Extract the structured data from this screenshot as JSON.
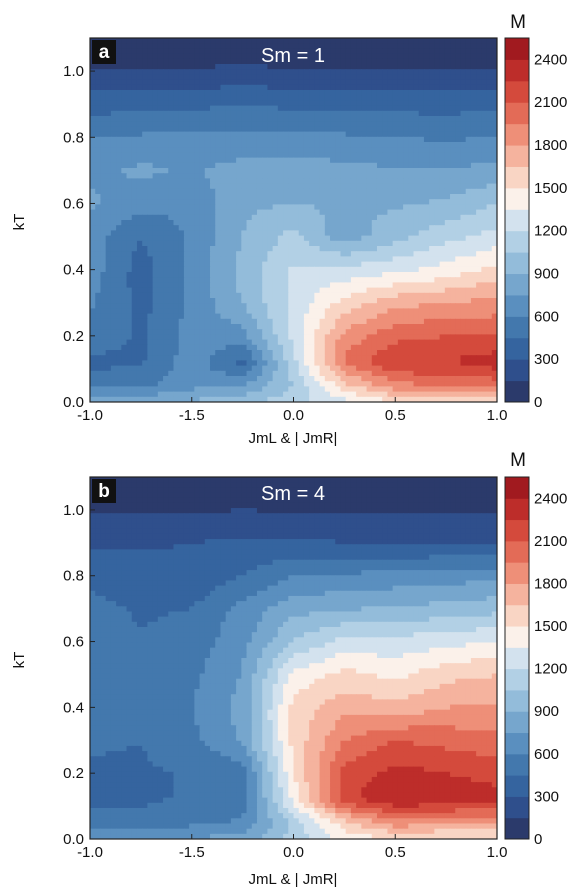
{
  "chart_data": [
    {
      "type": "heatmap",
      "panel_tag": "a",
      "title": "Sm = 1",
      "xlabel": "JmL & | JmR|",
      "ylabel": "kT",
      "xticks": [
        "-1.0",
        "-1.5",
        "0.0",
        "0.5",
        "1.0"
      ],
      "yticks": [
        "0.0",
        "0.2",
        "0.4",
        "0.6",
        "0.8",
        "1.0"
      ],
      "ylim": [
        0,
        1.1
      ],
      "colorbar": {
        "title": "M",
        "ticks": [
          "0",
          "300",
          "600",
          "900",
          "1200",
          "1500",
          "1800",
          "2100",
          "2400"
        ],
        "range": [
          0,
          2550
        ]
      },
      "legend": "right",
      "grid": false,
      "rows": [
        {
          "kT": 1.1,
          "values": [
            0,
            0,
            0,
            0,
            0,
            0,
            0,
            0,
            0
          ]
        },
        {
          "kT": 1.0,
          "values": [
            150,
            150,
            150,
            200,
            150,
            150,
            150,
            150,
            150
          ]
        },
        {
          "kT": 0.9,
          "values": [
            380,
            400,
            420,
            430,
            420,
            410,
            400,
            390,
            420
          ]
        },
        {
          "kT": 0.8,
          "values": [
            600,
            620,
            640,
            650,
            640,
            620,
            600,
            580,
            600
          ]
        },
        {
          "kT": 0.7,
          "values": [
            720,
            780,
            740,
            800,
            820,
            800,
            760,
            760,
            800
          ]
        },
        {
          "kT": 0.6,
          "values": [
            780,
            650,
            640,
            870,
            900,
            870,
            880,
            920,
            1050
          ]
        },
        {
          "kT": 0.5,
          "values": [
            680,
            450,
            630,
            900,
            1100,
            800,
            1000,
            1150,
            1250
          ]
        },
        {
          "kT": 0.4,
          "values": [
            680,
            380,
            640,
            960,
            1220,
            1250,
            1300,
            1400,
            1550
          ]
        },
        {
          "kT": 0.3,
          "values": [
            620,
            400,
            640,
            900,
            1250,
            1550,
            1750,
            1800,
            1850
          ]
        },
        {
          "kT": 0.2,
          "values": [
            560,
            420,
            660,
            700,
            1250,
            1850,
            2050,
            2100,
            2100
          ]
        },
        {
          "kT": 0.12,
          "values": [
            400,
            430,
            680,
            380,
            1150,
            2000,
            2250,
            2250,
            2350
          ]
        },
        {
          "kT": 0.05,
          "values": [
            560,
            560,
            700,
            760,
            1050,
            1600,
            1900,
            2000,
            2000
          ]
        },
        {
          "kT": 0.0,
          "values": [
            800,
            850,
            920,
            1000,
            1150,
            1300,
            1500,
            1550,
            1550
          ]
        }
      ]
    },
    {
      "type": "heatmap",
      "panel_tag": "b",
      "title": "Sm = 4",
      "xlabel": "JmL & | JmR|",
      "ylabel": "kT",
      "xticks": [
        "-1.0",
        "-1.5",
        "0.0",
        "0.5",
        "1.0"
      ],
      "yticks": [
        "0.0",
        "0.2",
        "0.4",
        "0.6",
        "0.8",
        "1.0"
      ],
      "ylim": [
        0,
        1.1
      ],
      "colorbar": {
        "title": "M",
        "ticks": [
          "0",
          "300",
          "600",
          "900",
          "1200",
          "1500",
          "1800",
          "2100",
          "2400"
        ],
        "range": [
          0,
          2550
        ]
      },
      "legend": "right",
      "grid": false,
      "rows": [
        {
          "kT": 1.1,
          "values": [
            0,
            0,
            0,
            0,
            0,
            0,
            0,
            0,
            0
          ]
        },
        {
          "kT": 1.0,
          "values": [
            130,
            130,
            130,
            150,
            130,
            130,
            130,
            130,
            130
          ]
        },
        {
          "kT": 0.9,
          "values": [
            280,
            280,
            300,
            330,
            320,
            300,
            280,
            280,
            300
          ]
        },
        {
          "kT": 0.8,
          "values": [
            400,
            380,
            330,
            450,
            600,
            620,
            650,
            680,
            700
          ]
        },
        {
          "kT": 0.7,
          "values": [
            500,
            430,
            450,
            650,
            850,
            880,
            920,
            950,
            1000
          ]
        },
        {
          "kT": 0.6,
          "values": [
            520,
            460,
            520,
            700,
            1050,
            1250,
            1250,
            1300,
            1350
          ]
        },
        {
          "kT": 0.5,
          "values": [
            500,
            450,
            560,
            760,
            1400,
            1550,
            1450,
            1600,
            1650
          ]
        },
        {
          "kT": 0.4,
          "values": [
            480,
            450,
            600,
            800,
            1550,
            1750,
            1700,
            1800,
            1800
          ]
        },
        {
          "kT": 0.3,
          "values": [
            470,
            450,
            560,
            780,
            1550,
            1950,
            2100,
            2050,
            2000
          ]
        },
        {
          "kT": 0.2,
          "values": [
            430,
            430,
            460,
            500,
            1500,
            2150,
            2300,
            2250,
            2200
          ]
        },
        {
          "kT": 0.12,
          "values": [
            400,
            420,
            470,
            520,
            1400,
            2200,
            2400,
            2350,
            2300
          ]
        },
        {
          "kT": 0.05,
          "values": [
            520,
            520,
            560,
            620,
            1100,
            1600,
            1900,
            1850,
            1800
          ]
        },
        {
          "kT": 0.0,
          "values": [
            700,
            720,
            760,
            820,
            1100,
            1400,
            1500,
            1450,
            1450
          ]
        }
      ]
    }
  ]
}
